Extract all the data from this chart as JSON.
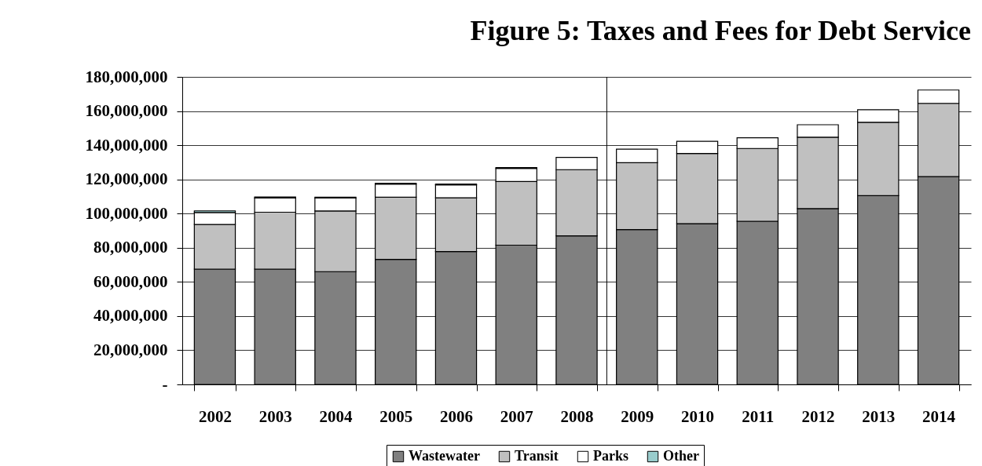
{
  "chart_data": {
    "type": "bar",
    "title": "Figure 5: Taxes and Fees for Debt Service",
    "categories": [
      "2002",
      "2003",
      "2004",
      "2005",
      "2006",
      "2007",
      "2008",
      "2009",
      "2010",
      "2011",
      "2012",
      "2013",
      "2014"
    ],
    "stacked": true,
    "series": [
      {
        "name": "Wastewater",
        "color": "#808080",
        "values": [
          67500000,
          67500000,
          66000000,
          73200000,
          77800000,
          81500000,
          87000000,
          90600000,
          94100000,
          95500000,
          102900000,
          110500000,
          121600000
        ]
      },
      {
        "name": "Transit",
        "color": "#c0c0c0",
        "values": [
          26100000,
          33300000,
          35500000,
          36400000,
          31400000,
          37300000,
          38700000,
          39200000,
          41100000,
          42600000,
          41800000,
          42900000,
          42900000
        ]
      },
      {
        "name": "Parks",
        "color": "#ffffff",
        "values": [
          7000000,
          8300000,
          7600000,
          7600000,
          7600000,
          7600000,
          7200000,
          7900000,
          7100000,
          6300000,
          7300000,
          7400000,
          7800000
        ]
      },
      {
        "name": "Other",
        "color": "#99cccc",
        "values": [
          1000000,
          600000,
          500000,
          500000,
          500000,
          500000,
          null,
          null,
          null,
          null,
          null,
          null,
          null
        ]
      }
    ],
    "ylim": [
      0,
      180000000
    ],
    "yticks": [
      {
        "value": 0,
        "label": "-"
      },
      {
        "value": 20000000,
        "label": "20,000,000"
      },
      {
        "value": 40000000,
        "label": "40,000,000"
      },
      {
        "value": 60000000,
        "label": "60,000,000"
      },
      {
        "value": 80000000,
        "label": "80,000,000"
      },
      {
        "value": 100000000,
        "label": "100,000,000"
      },
      {
        "value": 120000000,
        "label": "120,000,000"
      },
      {
        "value": 140000000,
        "label": "140,000,000"
      },
      {
        "value": 160000000,
        "label": "160,000,000"
      },
      {
        "value": 180000000,
        "label": "180,000,000"
      }
    ],
    "grid": "y",
    "legend": "bottom"
  }
}
